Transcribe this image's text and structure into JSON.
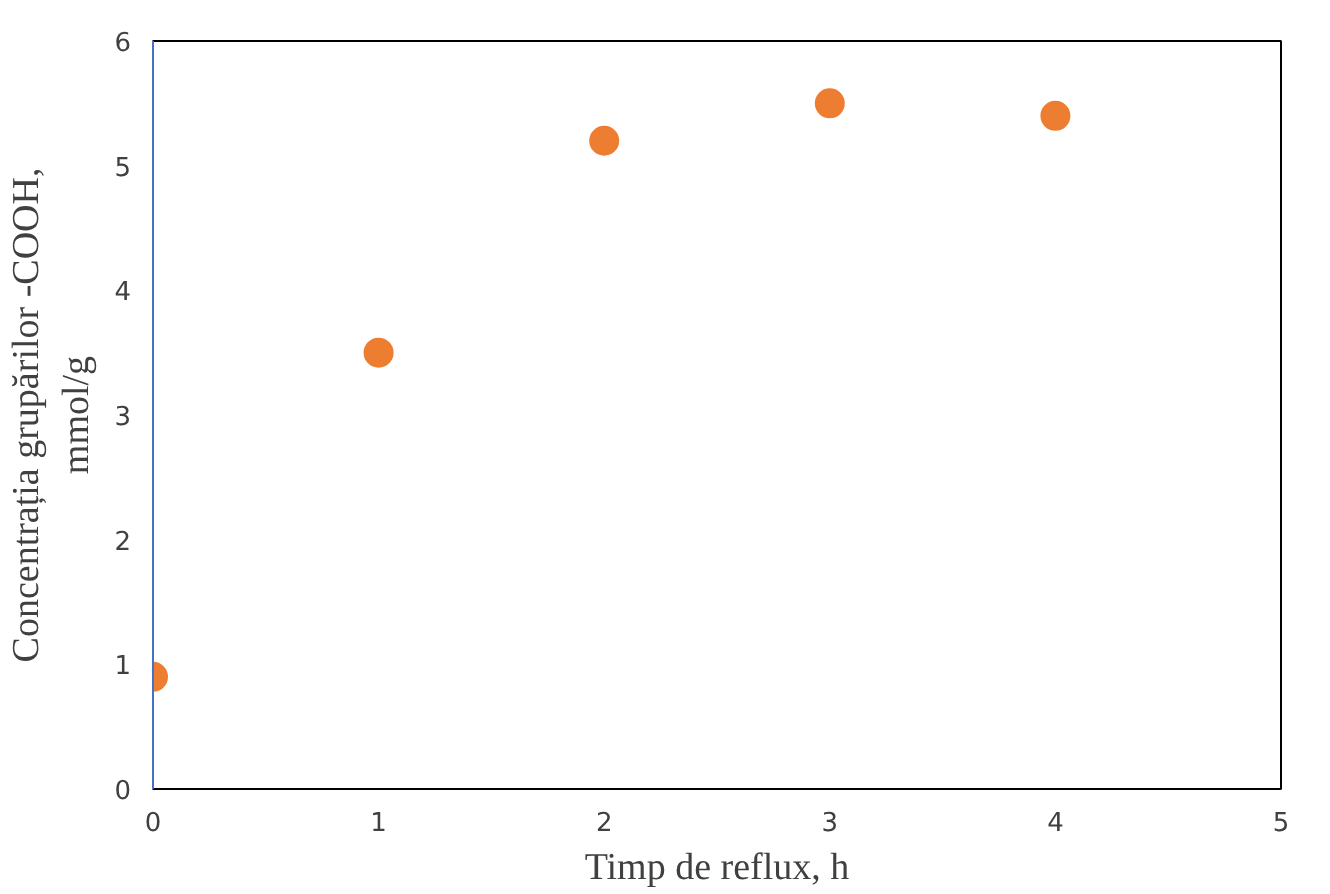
{
  "chart_data": {
    "type": "scatter",
    "xlabel": "Timp de reflux, h",
    "ylabel": "Concentrația grupărilor -COOH,\nmmol/g",
    "x": [
      0,
      1,
      2,
      3,
      4
    ],
    "series": [
      {
        "color": "#ed7d31",
        "values": [
          0.9,
          3.5,
          5.2,
          5.5,
          5.4
        ]
      }
    ],
    "xlim": [
      0,
      5
    ],
    "ylim": [
      0,
      6
    ],
    "xticks": [
      0,
      1,
      2,
      3,
      4,
      5
    ],
    "yticks": [
      0,
      1,
      2,
      3,
      4,
      5,
      6
    ],
    "grid": false,
    "marker": "circle"
  }
}
